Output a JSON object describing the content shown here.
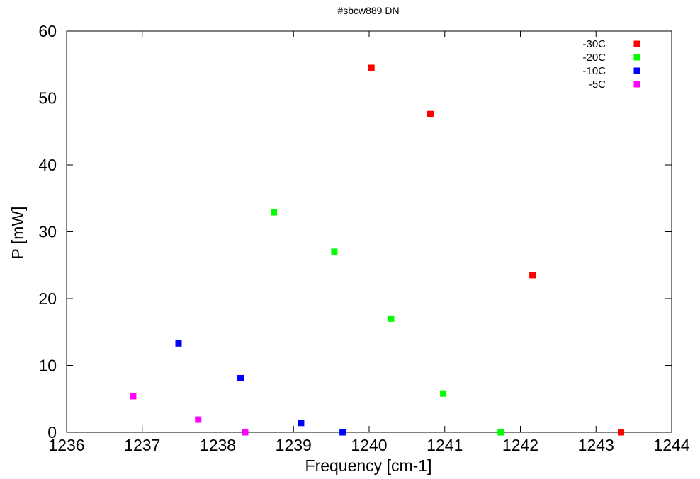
{
  "chart_data": {
    "type": "scatter",
    "title": "#sbcw889 DN",
    "xlabel": "Frequency [cm-1]",
    "ylabel": "P [mW]",
    "xlim": [
      1236,
      1244
    ],
    "ylim": [
      0,
      60
    ],
    "xticks": [
      1236,
      1237,
      1238,
      1239,
      1240,
      1241,
      1242,
      1243,
      1244
    ],
    "yticks": [
      0,
      10,
      20,
      30,
      40,
      50,
      60
    ],
    "grid": false,
    "legend_position": "top-right",
    "series": [
      {
        "name": "-30C",
        "color": "#ff0000",
        "points": [
          {
            "x": 1240.03,
            "y": 54.5
          },
          {
            "x": 1240.81,
            "y": 47.6
          },
          {
            "x": 1242.16,
            "y": 23.5
          },
          {
            "x": 1243.33,
            "y": 0
          }
        ]
      },
      {
        "name": "-20C",
        "color": "#00ff00",
        "points": [
          {
            "x": 1238.74,
            "y": 32.9
          },
          {
            "x": 1239.54,
            "y": 27.0
          },
          {
            "x": 1240.29,
            "y": 17.0
          },
          {
            "x": 1240.98,
            "y": 5.8
          },
          {
            "x": 1241.74,
            "y": 0
          }
        ]
      },
      {
        "name": "-10C",
        "color": "#0000ff",
        "points": [
          {
            "x": 1237.48,
            "y": 13.3
          },
          {
            "x": 1238.3,
            "y": 8.1
          },
          {
            "x": 1239.1,
            "y": 1.4
          },
          {
            "x": 1239.65,
            "y": 0
          }
        ]
      },
      {
        "name": "-5C",
        "color": "#ff00ff",
        "points": [
          {
            "x": 1236.88,
            "y": 5.4
          },
          {
            "x": 1237.74,
            "y": 1.9
          },
          {
            "x": 1238.36,
            "y": 0
          }
        ]
      }
    ]
  }
}
